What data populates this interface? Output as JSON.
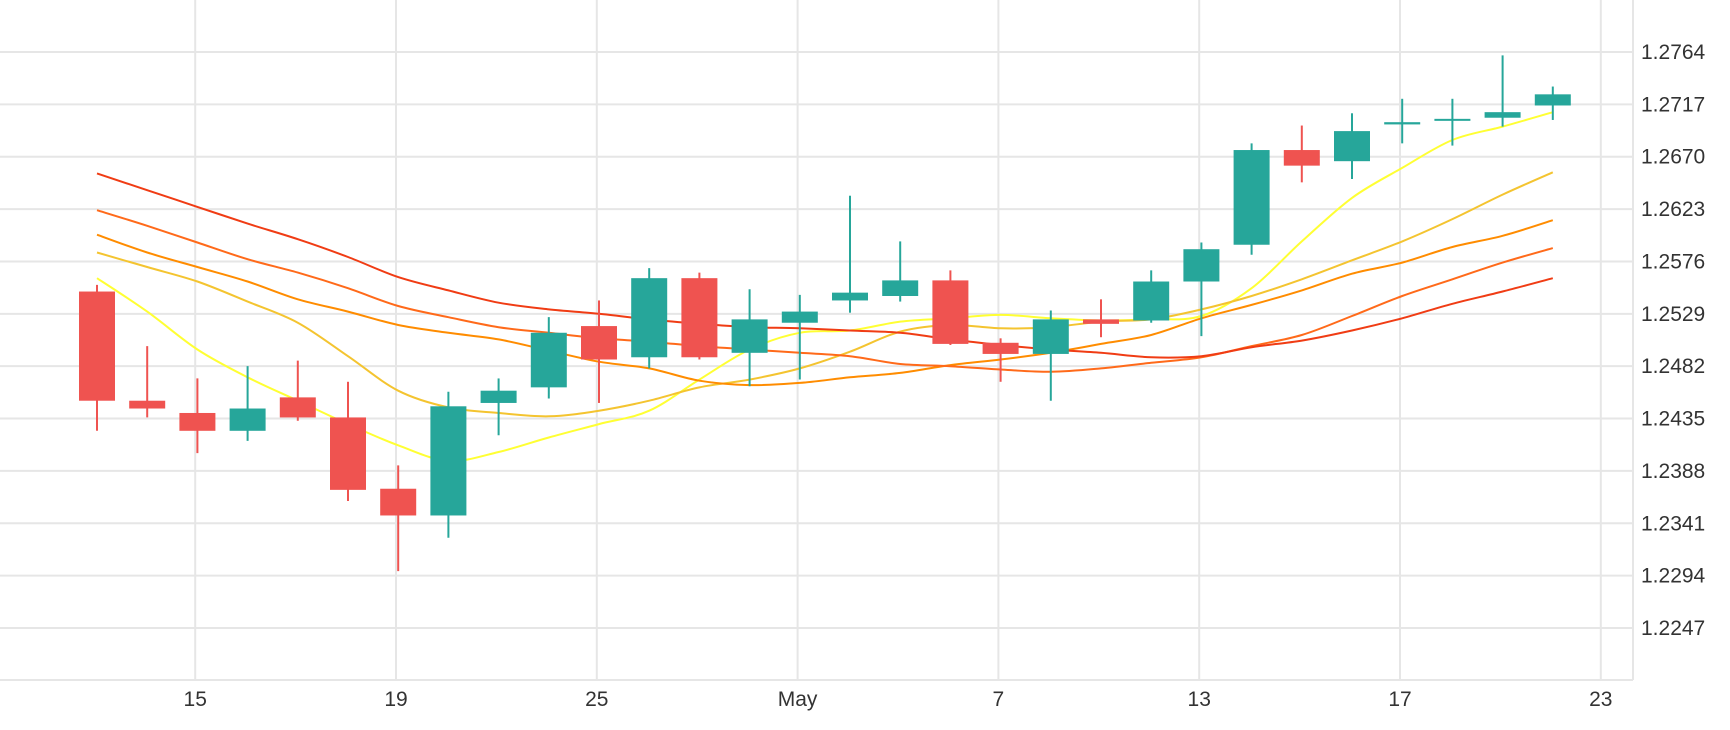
{
  "colors": {
    "up": "#26a69a",
    "down": "#ef5350",
    "grid": "#e6e6e6",
    "text": "#333333"
  },
  "chart_data": {
    "type": "candlestick",
    "title": "",
    "xlabel": "",
    "ylabel": "",
    "ylim": [
      1.22,
      1.281
    ],
    "y_ticks": [
      "1.2764",
      "1.2717",
      "1.2670",
      "1.2623",
      "1.2576",
      "1.2529",
      "1.2482",
      "1.2435",
      "1.2388",
      "1.2341",
      "1.2294",
      "1.2247"
    ],
    "x_tick_labels": [
      {
        "label": "15",
        "index": 1
      },
      {
        "label": "19",
        "index": 5
      },
      {
        "label": "25",
        "index": 9
      },
      {
        "label": "May",
        "index": 13
      },
      {
        "label": "7",
        "index": 17
      },
      {
        "label": "13",
        "index": 21
      },
      {
        "label": "17",
        "index": 25
      },
      {
        "label": "23",
        "index": 29
      }
    ],
    "grid": true,
    "candles": [
      {
        "o": 1.2549,
        "h": 1.2555,
        "l": 1.2424,
        "c": 1.2451
      },
      {
        "o": 1.2451,
        "h": 1.25,
        "l": 1.2436,
        "c": 1.2444
      },
      {
        "o": 1.244,
        "h": 1.2471,
        "l": 1.2404,
        "c": 1.2424
      },
      {
        "o": 1.2424,
        "h": 1.2482,
        "l": 1.2415,
        "c": 1.2444
      },
      {
        "o": 1.2454,
        "h": 1.2487,
        "l": 1.2433,
        "c": 1.2436
      },
      {
        "o": 1.2436,
        "h": 1.2468,
        "l": 1.2361,
        "c": 1.2371
      },
      {
        "o": 1.2372,
        "h": 1.2393,
        "l": 1.2298,
        "c": 1.2348
      },
      {
        "o": 1.2348,
        "h": 1.2459,
        "l": 1.2328,
        "c": 1.2446
      },
      {
        "o": 1.2449,
        "h": 1.2471,
        "l": 1.242,
        "c": 1.246
      },
      {
        "o": 1.2463,
        "h": 1.2526,
        "l": 1.2453,
        "c": 1.2512
      },
      {
        "o": 1.2518,
        "h": 1.2541,
        "l": 1.2449,
        "c": 1.2488
      },
      {
        "o": 1.249,
        "h": 1.257,
        "l": 1.248,
        "c": 1.2561
      },
      {
        "o": 1.2561,
        "h": 1.2566,
        "l": 1.2488,
        "c": 1.249
      },
      {
        "o": 1.2494,
        "h": 1.2551,
        "l": 1.2464,
        "c": 1.2524
      },
      {
        "o": 1.2521,
        "h": 1.2546,
        "l": 1.247,
        "c": 1.2531
      },
      {
        "o": 1.2541,
        "h": 1.2635,
        "l": 1.253,
        "c": 1.2548
      },
      {
        "o": 1.2545,
        "h": 1.2594,
        "l": 1.254,
        "c": 1.2559
      },
      {
        "o": 1.2559,
        "h": 1.2568,
        "l": 1.2501,
        "c": 1.2502
      },
      {
        "o": 1.2503,
        "h": 1.2507,
        "l": 1.2468,
        "c": 1.2493
      },
      {
        "o": 1.2493,
        "h": 1.2532,
        "l": 1.2451,
        "c": 1.2524
      },
      {
        "o": 1.2524,
        "h": 1.2542,
        "l": 1.2508,
        "c": 1.252
      },
      {
        "o": 1.2523,
        "h": 1.2568,
        "l": 1.2521,
        "c": 1.2558
      },
      {
        "o": 1.2558,
        "h": 1.2593,
        "l": 1.2509,
        "c": 1.2587
      },
      {
        "o": 1.2591,
        "h": 1.2682,
        "l": 1.2582,
        "c": 1.2676
      },
      {
        "o": 1.2676,
        "h": 1.2698,
        "l": 1.2647,
        "c": 1.2662
      },
      {
        "o": 1.2666,
        "h": 1.2709,
        "l": 1.265,
        "c": 1.2693
      },
      {
        "o": 1.2699,
        "h": 1.2722,
        "l": 1.2682,
        "c": 1.2701
      },
      {
        "o": 1.2703,
        "h": 1.2722,
        "l": 1.268,
        "c": 1.2704
      },
      {
        "o": 1.2705,
        "h": 1.2761,
        "l": 1.2697,
        "c": 1.271
      },
      {
        "o": 1.2716,
        "h": 1.2733,
        "l": 1.2703,
        "c": 1.2726
      }
    ],
    "series": [
      {
        "color": "#ffff33",
        "width": 2,
        "values": [
          1.2561,
          1.2531,
          1.2497,
          1.2472,
          1.2451,
          1.243,
          1.2411,
          1.2397,
          1.2405,
          1.2418,
          1.243,
          1.2442,
          1.247,
          1.2497,
          1.2512,
          1.2514,
          1.2522,
          1.2525,
          1.2528,
          1.2525,
          1.2523,
          1.2524,
          1.2527,
          1.2552,
          1.2594,
          1.2633,
          1.266,
          1.2685,
          1.2697,
          1.271
        ]
      },
      {
        "color": "#f4c430",
        "width": 2,
        "values": [
          1.2584,
          1.2571,
          1.2558,
          1.254,
          1.2521,
          1.2491,
          1.246,
          1.2445,
          1.244,
          1.2437,
          1.2442,
          1.2451,
          1.2463,
          1.247,
          1.248,
          1.2495,
          1.2513,
          1.2519,
          1.2516,
          1.2517,
          1.2522,
          1.2524,
          1.2533,
          1.2545,
          1.256,
          1.2577,
          1.2594,
          1.2614,
          1.2636,
          1.2656
        ]
      },
      {
        "color": "#ff8c00",
        "width": 2,
        "values": [
          1.26,
          1.2584,
          1.2571,
          1.2558,
          1.2542,
          1.2531,
          1.2519,
          1.2512,
          1.2506,
          1.2496,
          1.2486,
          1.248,
          1.2469,
          1.2465,
          1.2467,
          1.2472,
          1.2476,
          1.2483,
          1.2488,
          1.2494,
          1.2502,
          1.251,
          1.2525,
          1.2537,
          1.255,
          1.2565,
          1.2575,
          1.2589,
          1.2599,
          1.2613
        ]
      },
      {
        "color": "#ff6a1a",
        "width": 2,
        "values": [
          1.2622,
          1.2608,
          1.2593,
          1.2578,
          1.2566,
          1.2552,
          1.2536,
          1.2526,
          1.2517,
          1.2512,
          1.2507,
          1.2504,
          1.25,
          1.2497,
          1.2494,
          1.2491,
          1.2484,
          1.2482,
          1.2479,
          1.2477,
          1.248,
          1.2485,
          1.249,
          1.25,
          1.251,
          1.2527,
          1.2545,
          1.256,
          1.2575,
          1.2588
        ]
      },
      {
        "color": "#f03c14",
        "width": 2,
        "values": [
          1.2655,
          1.264,
          1.2625,
          1.261,
          1.2596,
          1.258,
          1.2562,
          1.255,
          1.2539,
          1.2533,
          1.2529,
          1.2524,
          1.252,
          1.2517,
          1.2516,
          1.2514,
          1.2512,
          1.2506,
          1.2501,
          1.2497,
          1.2494,
          1.249,
          1.2491,
          1.2499,
          1.2505,
          1.2514,
          1.2525,
          1.2538,
          1.2549,
          1.2561
        ]
      }
    ]
  }
}
